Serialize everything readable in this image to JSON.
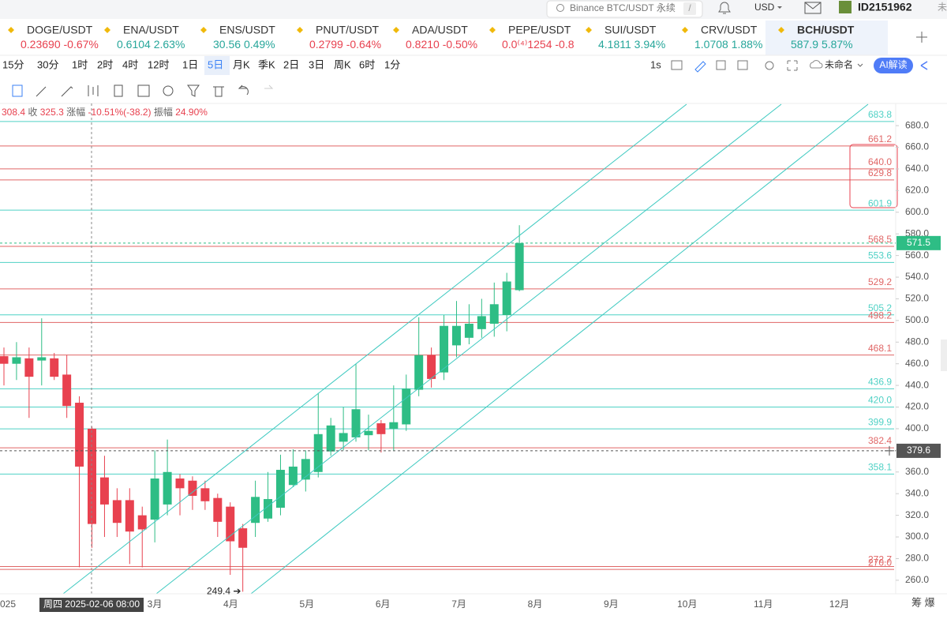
{
  "header": {
    "search": "Binance BTC/USDT 永续",
    "search_key": "/",
    "currency": "USD",
    "user_id": "ID2151962",
    "cut_text": "未"
  },
  "tickers": [
    {
      "name": "DOGE/USDT",
      "price": "0.23690",
      "change": "-0.67%"
    },
    {
      "name": "ENA/USDT",
      "price": "0.6104",
      "change": "2.63%"
    },
    {
      "name": "ENS/USDT",
      "price": "30.56",
      "change": "0.49%"
    },
    {
      "name": "PNUT/USDT",
      "price": "0.2799",
      "change": "-0.64%"
    },
    {
      "name": "ADA/USDT",
      "price": "0.8210",
      "change": "-0.50%"
    },
    {
      "name": "PEPE/USDT",
      "price": "0.0⁽⁴⁾1254",
      "change": "-0.8"
    },
    {
      "name": "SUI/USDT",
      "price": "4.1811",
      "change": "3.94%"
    },
    {
      "name": "CRV/USDT",
      "price": "1.0708",
      "change": "1.88%"
    },
    {
      "name": "BCH/USDT",
      "price": "587.9",
      "change": "5.87%",
      "active": true
    }
  ],
  "timeframes": [
    "15分",
    "30分",
    "1时",
    "2时",
    "4时",
    "12时",
    "1日",
    "5日",
    "月K",
    "季K",
    "2日",
    "3日",
    "周K",
    "6时",
    "1分"
  ],
  "active_timeframe": 7,
  "toolbar": {
    "interval": "1s",
    "layout": "未命名",
    "ai": "AI解读"
  },
  "info": {
    "open": "308.4",
    "close_label": "收",
    "close": "325.3",
    "change_label": "涨幅",
    "change": "-10.51%(-38.2)",
    "amp_label": "振幅",
    "amp": "24.90%"
  },
  "chart_data": {
    "type": "candlestick",
    "colors": {
      "up": "#2ebd85",
      "down": "#e8414f"
    },
    "ylim": [
      247.5,
      700.5
    ],
    "yticks": [
      {
        "value": 260,
        "label": "260.0"
      },
      {
        "value": 280,
        "label": "280.0"
      },
      {
        "value": 300,
        "label": "300.0"
      },
      {
        "value": 320,
        "label": "320.0"
      },
      {
        "value": 340,
        "label": "340.0"
      },
      {
        "value": 360,
        "label": "360.0"
      },
      {
        "value": 380,
        "label": "380.0"
      },
      {
        "value": 400,
        "label": "400.0"
      },
      {
        "value": 420,
        "label": "420.0"
      },
      {
        "value": 440,
        "label": "440.0"
      },
      {
        "value": 460,
        "label": "460.0"
      },
      {
        "value": 480,
        "label": "480.0"
      },
      {
        "value": 500,
        "label": "500.0"
      },
      {
        "value": 520,
        "label": "520.0"
      },
      {
        "value": 540,
        "label": "540.0"
      },
      {
        "value": 560,
        "label": "560.0"
      },
      {
        "value": 580,
        "label": "580.0"
      },
      {
        "value": 600,
        "label": "600.0"
      },
      {
        "value": 620,
        "label": "620.0"
      },
      {
        "value": 640,
        "label": "640.0"
      },
      {
        "value": 660,
        "label": "660.0"
      },
      {
        "value": 680,
        "label": "680.0"
      }
    ],
    "x_labels": [
      "3月",
      "4月",
      "5月",
      "6月",
      "7月",
      "8月",
      "9月",
      "10月",
      "11月",
      "12月"
    ],
    "x_start_label": "025",
    "open": [
      467,
      460,
      465,
      463,
      465,
      450,
      424,
      400,
      355,
      334,
      334,
      320,
      316,
      330,
      354,
      352,
      345,
      336,
      328,
      308,
      313,
      317,
      327,
      348,
      353,
      360,
      379,
      388,
      392,
      394,
      405,
      400,
      404,
      436,
      468,
      452,
      477,
      484,
      492,
      497,
      505,
      528
    ],
    "close": [
      460,
      466,
      448,
      466,
      448,
      421,
      365,
      312,
      330,
      313,
      305,
      307,
      354,
      360,
      345,
      338,
      333,
      314,
      296,
      290,
      337,
      335,
      362,
      365,
      372,
      395,
      403,
      396,
      418,
      398,
      395,
      406,
      437,
      468,
      446,
      495,
      495,
      497,
      504,
      515,
      536,
      571.5
    ],
    "high": [
      475,
      480,
      475,
      502,
      470,
      468,
      430,
      402,
      375,
      345,
      345,
      328,
      380,
      390,
      358,
      356,
      352,
      340,
      332,
      312,
      352,
      360,
      376,
      381,
      380,
      433,
      410,
      420,
      460,
      413,
      408,
      440,
      450,
      503,
      475,
      505,
      518,
      515,
      520,
      535,
      544,
      588
    ],
    "low": [
      440,
      445,
      410,
      440,
      445,
      410,
      272,
      290,
      300,
      300,
      275,
      272,
      295,
      320,
      320,
      325,
      325,
      300,
      265,
      249.4,
      300,
      314,
      320,
      346,
      342,
      355,
      375,
      380,
      388,
      380,
      378,
      380,
      398,
      430,
      438,
      445,
      466,
      478,
      484,
      485,
      490,
      527
    ],
    "levels": [
      {
        "value": 683.8,
        "label": "683.8",
        "color": "#4fd1c5"
      },
      {
        "value": 661.2,
        "label": "661.2",
        "color": "#e06666"
      },
      {
        "value": 640,
        "label": "640.0",
        "color": "#e06666"
      },
      {
        "value": 629.8,
        "label": "629.8",
        "color": "#e06666"
      },
      {
        "value": 601.9,
        "label": "601.9",
        "color": "#4fd1c5"
      },
      {
        "value": 568.5,
        "label": "568.5",
        "color": "#e06666"
      },
      {
        "value": 553.6,
        "label": "553.6",
        "color": "#4fd1c5"
      },
      {
        "value": 529.2,
        "label": "529.2",
        "color": "#e06666"
      },
      {
        "value": 505.2,
        "label": "505.2",
        "color": "#4fd1c5"
      },
      {
        "value": 498.2,
        "label": "498.2",
        "color": "#e06666"
      },
      {
        "value": 468.1,
        "label": "468.1",
        "color": "#e06666"
      },
      {
        "value": 436.9,
        "label": "436.9",
        "color": "#4fd1c5"
      },
      {
        "value": 420,
        "label": "420.0",
        "color": "#4fd1c5"
      },
      {
        "value": 399.9,
        "label": "399.9",
        "color": "#4fd1c5"
      },
      {
        "value": 382.4,
        "label": "382.4",
        "color": "#e06666"
      },
      {
        "value": 358.1,
        "label": "358.1",
        "color": "#4fd1c5"
      },
      {
        "value": 272.7,
        "label": "272.7",
        "color": "#e06666"
      },
      {
        "value": 270,
        "label": "270.0",
        "color": "#e06666"
      }
    ],
    "price_tags": [
      {
        "value": 571.5,
        "label": "571.5",
        "color": "#2ebd85"
      },
      {
        "value": 379.6,
        "label": "379.6",
        "color": "#555"
      }
    ],
    "low_annotation": {
      "value": 249.4,
      "label": "249.4 ➔"
    },
    "crosshair_label": "周四 2025-02-06 08:00",
    "bottom_right": "筹 爆"
  }
}
